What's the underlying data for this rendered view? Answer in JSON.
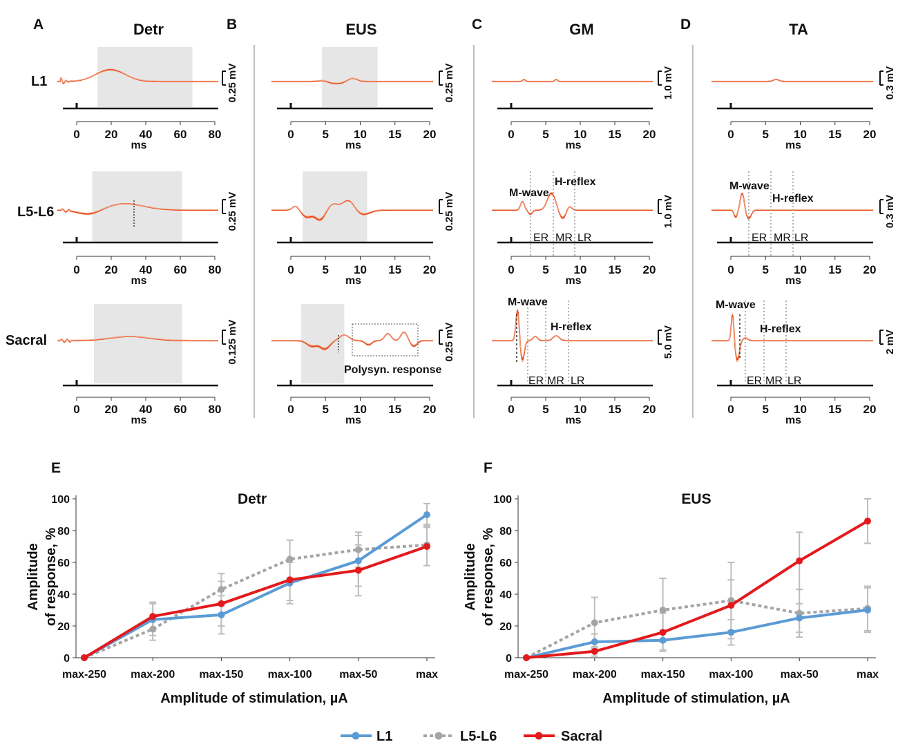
{
  "colors": {
    "trace": "#e8431a",
    "trace_light": "#f2a582",
    "shade": "#e6e6e6",
    "l1": "#5b9bd5",
    "l5l6": "#a5a5a5",
    "sacral": "#e31a1c",
    "err": "#bdbdbd"
  },
  "panels": {
    "A": {
      "letter": "A",
      "title": "Detr"
    },
    "B": {
      "letter": "B",
      "title": "EUS"
    },
    "C": {
      "letter": "C",
      "title": "GM"
    },
    "D": {
      "letter": "D",
      "title": "TA"
    },
    "E": {
      "letter": "E"
    },
    "F": {
      "letter": "F"
    }
  },
  "rows": {
    "r1": "L1",
    "r2": "L5-L6",
    "r3": "Sacral"
  },
  "scales": {
    "A": [
      "0.25 mV",
      "0.25 mV",
      "0.125 mV"
    ],
    "B": [
      "0.25 mV",
      "0.25 mV",
      "0.25 mV"
    ],
    "C": [
      "1.0 mV",
      "1.0 mV",
      "5.0 mV"
    ],
    "D": [
      "0.3 mV",
      "0.3 mV",
      "2 mV"
    ]
  },
  "axes": {
    "detr_ticks": [
      "0",
      "20",
      "40",
      "60",
      "80"
    ],
    "ms_ticks": [
      "0",
      "5",
      "10",
      "15",
      "20"
    ],
    "unit": "ms"
  },
  "annotations": {
    "m_wave": "M-wave",
    "h_reflex": "H-reflex",
    "er": "ER",
    "mr": "MR",
    "lr": "LR",
    "polysyn": "Polysyn. response"
  },
  "legend": [
    "L1",
    "L5-L6",
    "Sacral"
  ],
  "chart_data": [
    {
      "type": "line",
      "title": "Detr",
      "xlabel": "Amplitude of stimulation, µA",
      "ylabel": "Amplitude of response, %",
      "ylim": [
        0,
        100
      ],
      "yticks": [
        "0",
        "20",
        "40",
        "60",
        "80",
        "100"
      ],
      "categories": [
        "max-250",
        "max-200",
        "max-150",
        "max-100",
        "max-50",
        "max"
      ],
      "series": [
        {
          "name": "L1",
          "values": [
            0,
            24,
            27,
            47,
            61,
            90
          ],
          "errors": [
            0,
            10,
            12,
            13,
            16,
            7
          ]
        },
        {
          "name": "L5-L6",
          "values": [
            0,
            18,
            43,
            62,
            68,
            71
          ],
          "errors": [
            0,
            7,
            10,
            12,
            11,
            13
          ]
        },
        {
          "name": "Sacral",
          "values": [
            0,
            26,
            34,
            49,
            55,
            70
          ],
          "errors": [
            0,
            9,
            14,
            13,
            16,
            12
          ]
        }
      ]
    },
    {
      "type": "line",
      "title": "EUS",
      "xlabel": "Amplitude of stimulation, µA",
      "ylabel": "Amplitude of response, %",
      "ylim": [
        0,
        100
      ],
      "yticks": [
        "0",
        "20",
        "40",
        "60",
        "80",
        "100"
      ],
      "categories": [
        "max-250",
        "max-200",
        "max-150",
        "max-100",
        "max-50",
        "max"
      ],
      "series": [
        {
          "name": "L1",
          "values": [
            0,
            10,
            11,
            16,
            25,
            30
          ],
          "errors": [
            0,
            5,
            6,
            8,
            9,
            14
          ]
        },
        {
          "name": "L5-L6",
          "values": [
            0,
            22,
            30,
            36,
            28,
            31
          ],
          "errors": [
            0,
            16,
            20,
            24,
            15,
            14
          ]
        },
        {
          "name": "Sacral",
          "values": [
            0,
            4,
            16,
            33,
            61,
            86
          ],
          "errors": [
            0,
            3,
            12,
            16,
            18,
            14
          ]
        }
      ]
    }
  ]
}
